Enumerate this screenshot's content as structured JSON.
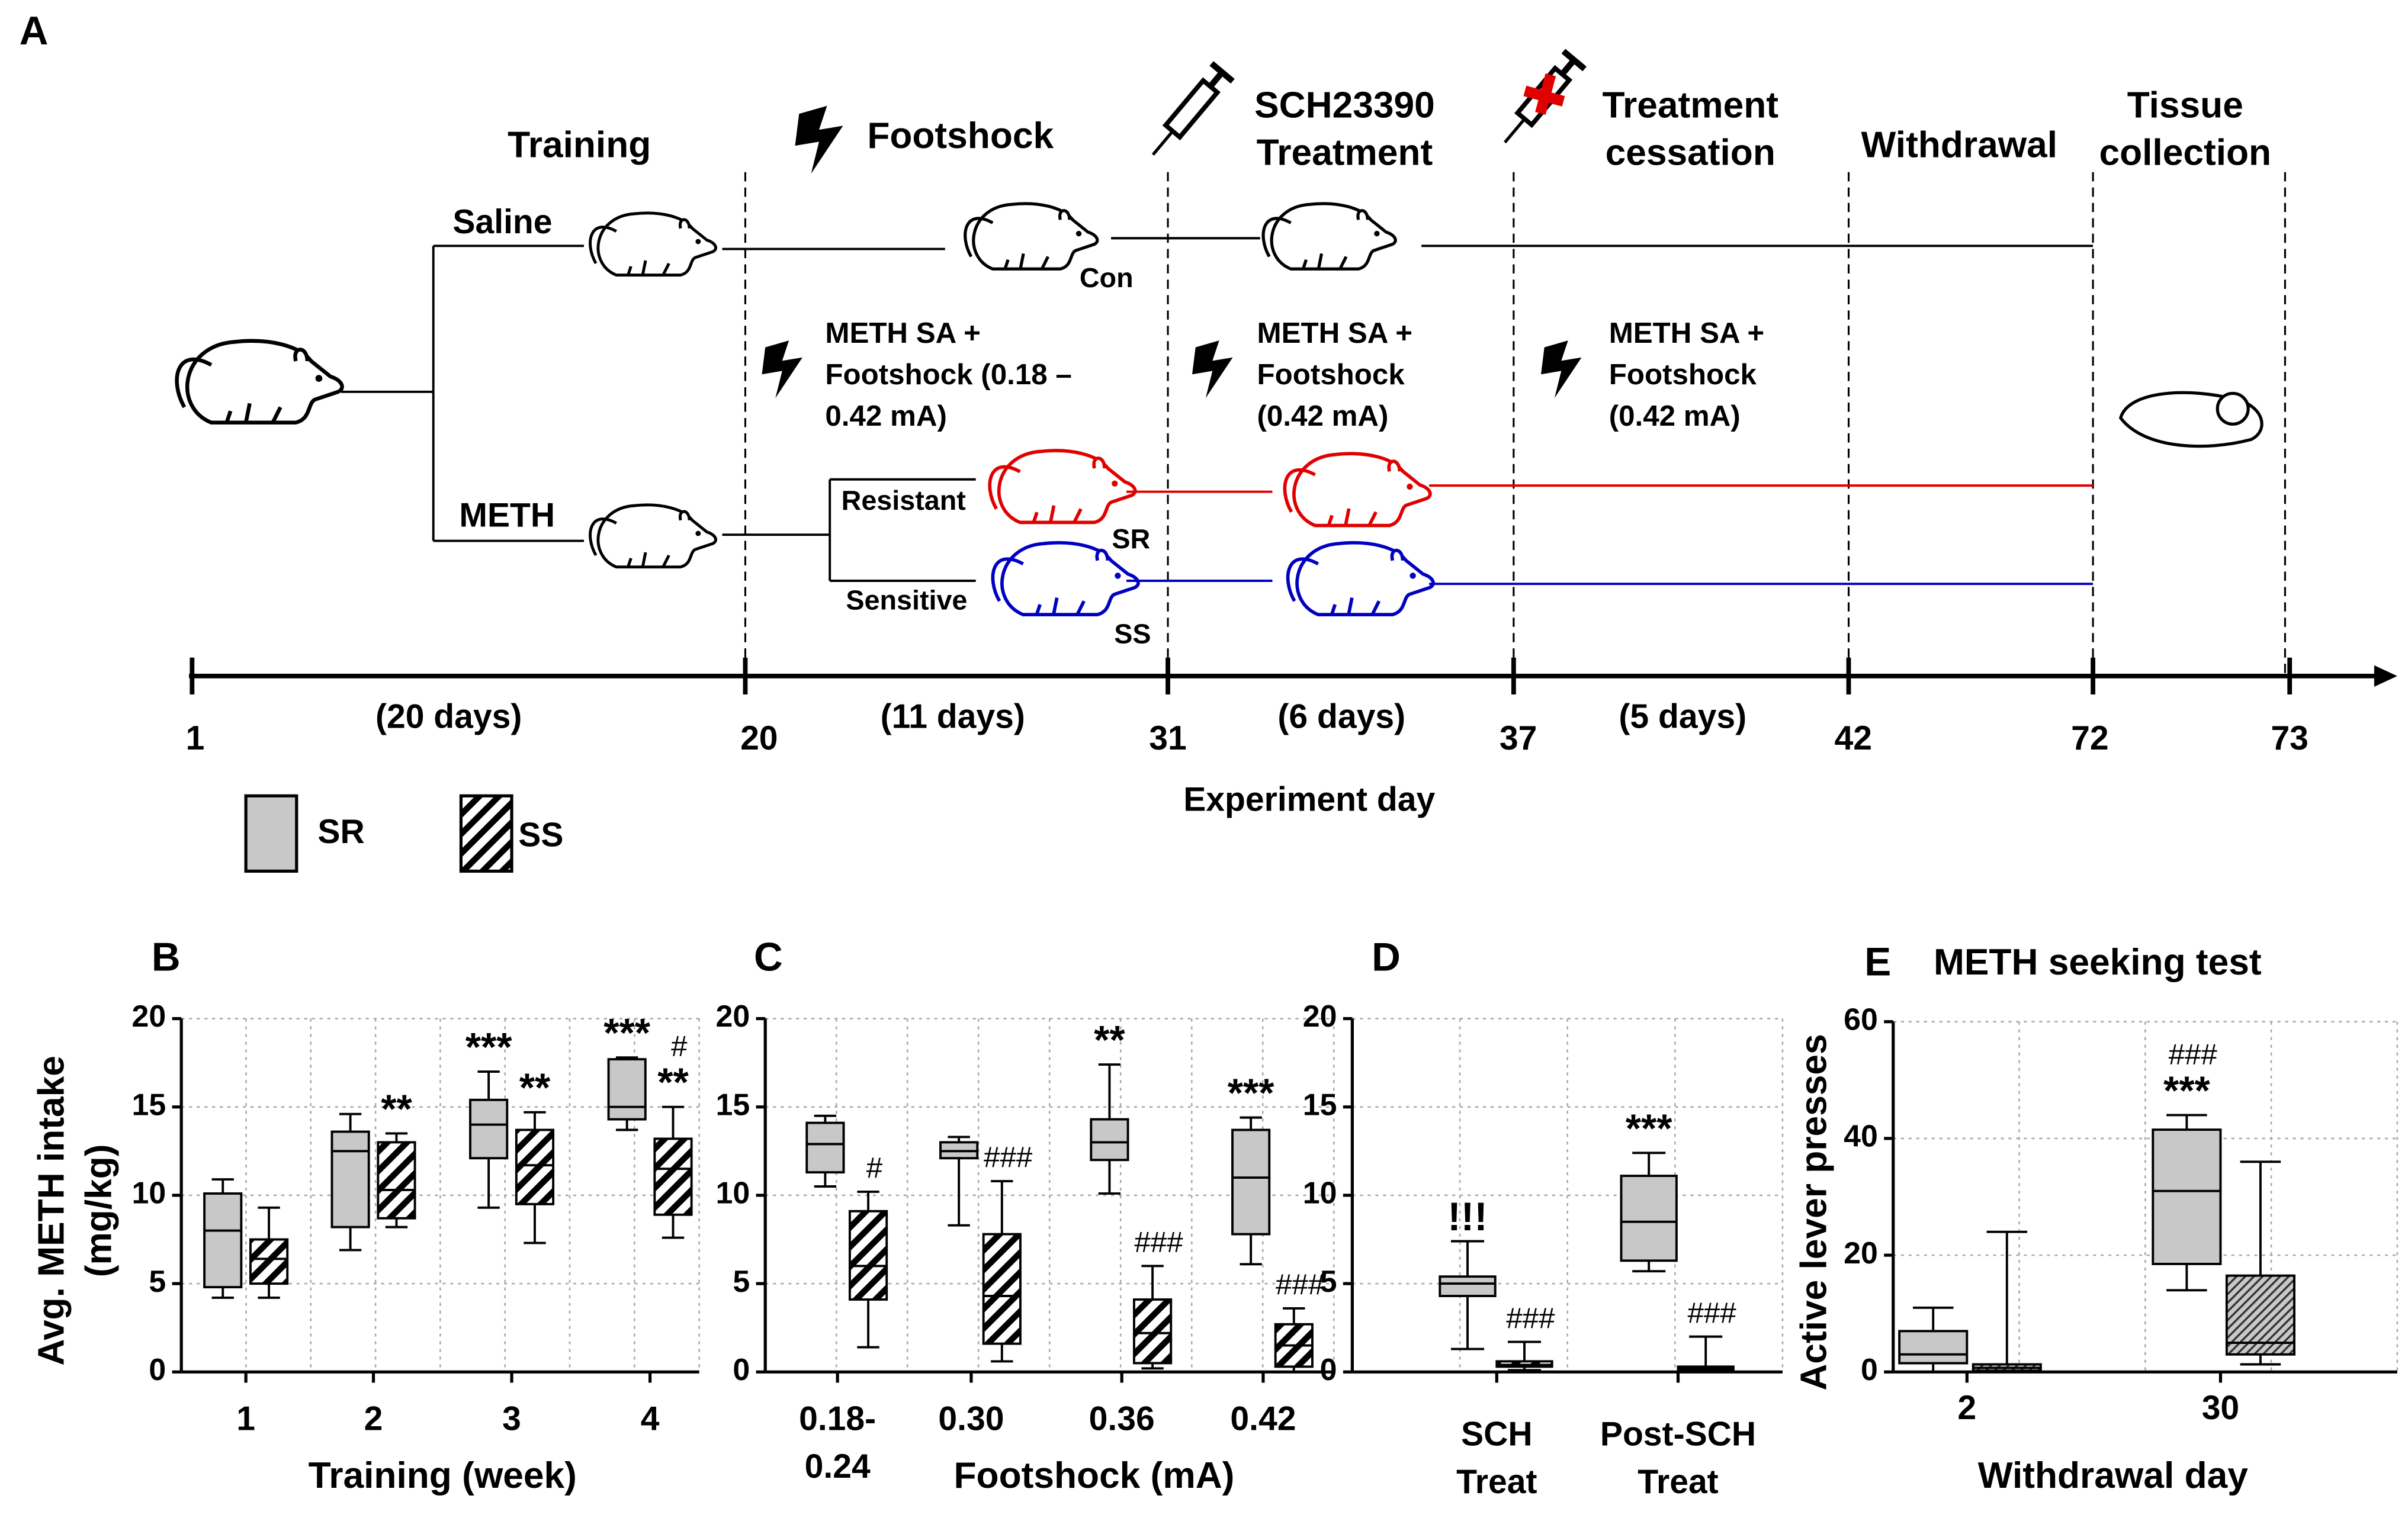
{
  "panel_a": {
    "label": "A",
    "phases": {
      "training": "Training",
      "footshock": "Footshock",
      "sch": [
        "SCH23390",
        "Treatment"
      ],
      "cessation": [
        "Treatment",
        "cessation"
      ],
      "withdrawal": "Withdrawal",
      "tissue": [
        "Tissue",
        "collection"
      ]
    },
    "groups": {
      "saline": "Saline",
      "meth": "METH",
      "control": "Con",
      "resistant": "Resistant",
      "sensitive": "Sensitive",
      "sr": "SR",
      "ss": "SS"
    },
    "procedures": [
      [
        "METH SA +",
        "Footshock  (0.18 –",
        "0.42 mA)"
      ],
      [
        "METH SA +",
        "Footshock",
        "(0.42 mA)"
      ],
      [
        "METH SA +",
        "Footshock",
        "(0.42 mA)"
      ]
    ],
    "timeline": {
      "days": [
        1,
        20,
        31,
        37,
        42,
        72,
        73
      ],
      "durations": [
        "(20 days)",
        "(11 days)",
        "(6 days)",
        "(5 days)"
      ],
      "axis_label": "Experiment day"
    }
  },
  "chart_data": [
    {
      "type": "box",
      "label": "B",
      "ylabel": [
        "Avg. METH intake",
        "(mg/kg)"
      ],
      "xlabel": "Training (week)",
      "categories": [
        "1",
        "2",
        "3",
        "4"
      ],
      "ylim": [
        0,
        20
      ],
      "yticks": [
        0,
        5,
        10,
        15,
        20
      ],
      "grid": true,
      "series": [
        {
          "name": "SR",
          "color": "#c8c8c8",
          "values": [
            {
              "min": 4.2,
              "q1": 4.8,
              "median": 8,
              "q3": 10.1,
              "max": 10.9
            },
            {
              "min": 6.9,
              "q1": 8.2,
              "median": 12.5,
              "q3": 13.6,
              "max": 14.6
            },
            {
              "min": 9.3,
              "q1": 12.1,
              "median": 14,
              "q3": 15.4,
              "max": 17
            },
            {
              "min": 13.7,
              "q1": 14.3,
              "median": 15,
              "q3": 17.7,
              "max": 17.8
            }
          ],
          "annotations": [
            null,
            null,
            [
              "***"
            ],
            [
              "***"
            ]
          ]
        },
        {
          "name": "SS",
          "color": "#000000",
          "hatch": true,
          "values": [
            {
              "min": 4.2,
              "q1": 5,
              "median": 6.4,
              "q3": 7.5,
              "max": 9.3
            },
            {
              "min": 8.2,
              "q1": 8.7,
              "median": 10.3,
              "q3": 13,
              "max": 13.5
            },
            {
              "min": 7.3,
              "q1": 9.5,
              "median": 11.7,
              "q3": 13.7,
              "max": 14.7
            },
            {
              "min": 7.6,
              "q1": 8.9,
              "median": 11.5,
              "q3": 13.2,
              "max": 15
            }
          ],
          "annotations": [
            null,
            [
              "**"
            ],
            [
              "**"
            ],
            [
              "**",
              "#"
            ]
          ]
        }
      ]
    },
    {
      "type": "box",
      "label": "C",
      "xlabel": "Footshock (mA)",
      "categories": [
        [
          "0.18-",
          "0.24"
        ],
        "0.30",
        "0.36",
        "0.42"
      ],
      "ylim": [
        0,
        20
      ],
      "yticks": [
        0,
        5,
        10,
        15,
        20
      ],
      "grid": true,
      "series": [
        {
          "name": "SR",
          "color": "#c8c8c8",
          "values": [
            {
              "min": 10.5,
              "q1": 11.3,
              "median": 12.9,
              "q3": 14.1,
              "max": 14.5
            },
            {
              "min": 8.3,
              "q1": 12.1,
              "median": 12.5,
              "q3": 13,
              "max": 13.3
            },
            {
              "min": 10.1,
              "q1": 12,
              "median": 13,
              "q3": 14.3,
              "max": 17.4
            },
            {
              "min": 6.1,
              "q1": 7.8,
              "median": 11,
              "q3": 13.7,
              "max": 14.4
            }
          ],
          "annotations": [
            null,
            null,
            [
              "**"
            ],
            [
              "***"
            ]
          ]
        },
        {
          "name": "SS",
          "color": "#000000",
          "hatch": true,
          "values": [
            {
              "min": 1.4,
              "q1": 4.1,
              "median": 6,
              "q3": 9.1,
              "max": 10.2
            },
            {
              "min": 0.6,
              "q1": 1.6,
              "median": 4.3,
              "q3": 7.8,
              "max": 10.8
            },
            {
              "min": 0.2,
              "q1": 0.5,
              "median": 2.2,
              "q3": 4.1,
              "max": 6
            },
            {
              "min": 0,
              "q1": 0.3,
              "median": 1.5,
              "q3": 2.7,
              "max": 3.6
            }
          ],
          "annotations": [
            [
              "#"
            ],
            [
              "###"
            ],
            [
              "###"
            ],
            [
              "###"
            ]
          ]
        }
      ]
    },
    {
      "type": "box",
      "label": "D",
      "categories": [
        [
          "SCH",
          "Treat"
        ],
        [
          "Post-SCH",
          "Treat"
        ]
      ],
      "ylim": [
        0,
        20
      ],
      "yticks": [
        0,
        5,
        10,
        15,
        20
      ],
      "grid": true,
      "series": [
        {
          "name": "SR",
          "color": "#c8c8c8",
          "values": [
            {
              "min": 1.3,
              "q1": 4.3,
              "median": 5,
              "q3": 5.4,
              "max": 7.4
            },
            {
              "min": 5.7,
              "q1": 6.3,
              "median": 8.5,
              "q3": 11.1,
              "max": 12.4
            }
          ],
          "annotations": [
            [
              "!!!"
            ],
            [
              "***"
            ]
          ]
        },
        {
          "name": "SS",
          "color": "#000000",
          "hatch": true,
          "values": [
            {
              "min": 0.1,
              "q1": 0.3,
              "median": 0.4,
              "q3": 0.6,
              "max": 1.7
            },
            {
              "min": 0,
              "q1": 0.1,
              "median": 0.2,
              "q3": 0.3,
              "max": 2
            }
          ],
          "annotations": [
            [
              "###"
            ],
            [
              "###"
            ]
          ]
        }
      ]
    },
    {
      "type": "box",
      "label": "E",
      "title": "METH seeking test",
      "ylabel": [
        "Active lever presses"
      ],
      "xlabel": "Withdrawal day",
      "categories": [
        "2",
        "30"
      ],
      "ylim": [
        0,
        60
      ],
      "yticks": [
        0,
        20,
        40,
        60
      ],
      "grid": true,
      "series": [
        {
          "name": "SR",
          "color": "#c8c8c8",
          "values": [
            {
              "min": 0,
              "q1": 1.5,
              "median": 3,
              "q3": 7,
              "max": 11
            },
            {
              "min": 14,
              "q1": 18.5,
              "median": 31,
              "q3": 41.5,
              "max": 44
            }
          ],
          "annotations": [
            null,
            [
              "***",
              "###"
            ]
          ]
        },
        {
          "name": "SS",
          "color": "#c8c8c8",
          "hatch": true,
          "values": [
            {
              "min": 0,
              "q1": 0.2,
              "median": 0.7,
              "q3": 1.3,
              "max": 24
            },
            {
              "min": 1.3,
              "q1": 3,
              "median": 5,
              "q3": 16.5,
              "max": 36
            }
          ],
          "annotations": [
            null,
            null
          ]
        }
      ]
    }
  ]
}
